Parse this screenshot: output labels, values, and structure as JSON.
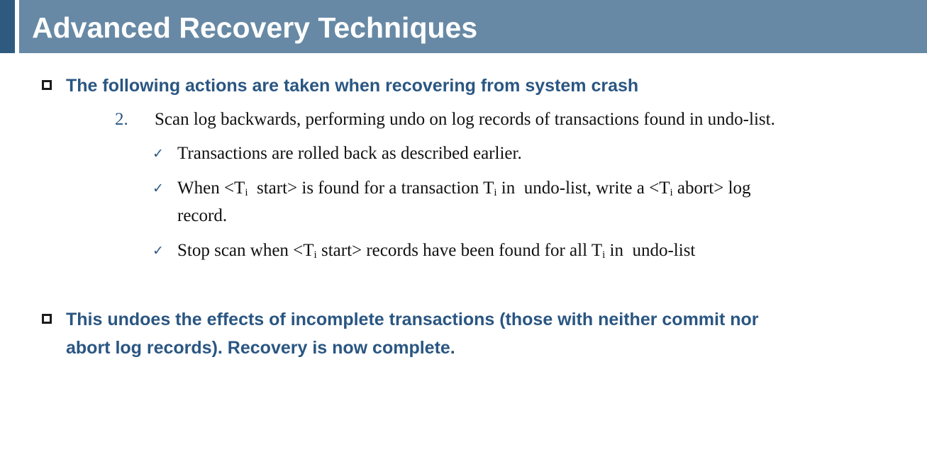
{
  "title": "Advanced Recovery Techniques",
  "bullet1": "The following actions are taken when recovering from system crash",
  "step": {
    "number": "2.",
    "text": "Scan log backwards, performing undo on log records of transactions found in undo-list."
  },
  "checks": {
    "c1": "Transactions are rolled back as described earlier.",
    "c2": {
      "p1": "When <T",
      "s1": "i",
      "p2": "  start> is found for a transaction T",
      "s2": "i",
      "p3": " in  undo-list, write a <T",
      "s3": "i",
      "p4": " abort> log",
      "line2": "record."
    },
    "c3": {
      "p1": "Stop scan when <T",
      "s1": "i",
      "p2": " start> records have been found for all T",
      "s2": "i",
      "p3": " in  undo-list"
    },
    "mark": "✓"
  },
  "bullet2": {
    "line1": "This undoes the effects of incomplete transactions (those with neither commit nor",
    "line2": "abort log records). Recovery is now complete."
  }
}
